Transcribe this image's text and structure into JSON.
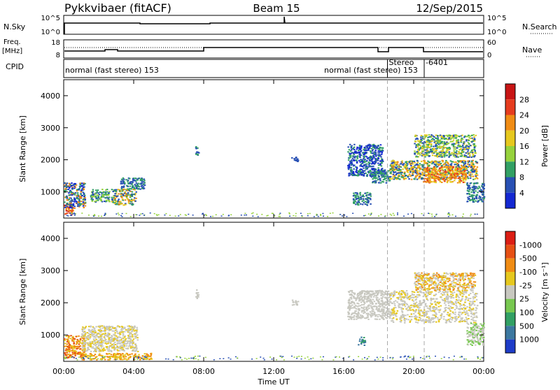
{
  "header": {
    "title": "Pykkvibaer (fitACF)",
    "beam": "Beam 15",
    "date": "12/Sep/2015"
  },
  "top_panels": {
    "nsky_label": "N.Sky",
    "nsky_ticks": [
      "10^5",
      "10^0"
    ],
    "nsearch_label": "N.Search",
    "nsearch_ticks": [
      "10^5",
      "10^0"
    ],
    "freq_label_line1": "Freq.",
    "freq_label_line2": "[MHz]",
    "freq_ticks": [
      "18",
      "8"
    ],
    "nave_label": "Nave",
    "nave_ticks": [
      "60",
      "0"
    ],
    "cpid_label": "CPID",
    "cpid_entries": [
      {
        "text": "normal (fast stereo) 153",
        "start_hour": 0.0
      },
      {
        "text": "normal (fast stereo) 153",
        "start_hour": 14.8
      },
      {
        "text": "Stereo",
        "start_hour": 18.5
      },
      {
        "text": "-6401",
        "start_hour": 20.6
      }
    ]
  },
  "chart_data": [
    {
      "type": "heatmap",
      "name": "Power panel",
      "ylabel": "Slant Range [km]",
      "ylim": [
        180,
        4500
      ],
      "xlim_hours": [
        0,
        24
      ],
      "yticks": [
        1000,
        2000,
        3000,
        4000
      ],
      "colorbar": {
        "label": "Power [dB]",
        "ticks": [
          "4",
          "8",
          "12",
          "16",
          "20",
          "24",
          "28"
        ],
        "colors": [
          "#1428d2",
          "#2850b4",
          "#32a064",
          "#96d23c",
          "#e6c81e",
          "#f08c14",
          "#e63c1e",
          "#c81414"
        ]
      },
      "vertical_markers_hours": [
        18.5,
        20.6
      ],
      "scatter_regions": [
        {
          "t0": 0.0,
          "t1": 0.5,
          "r0": 300,
          "r1": 700,
          "colors": [
            "#e63c1e",
            "#c81414",
            "#f08c14"
          ]
        },
        {
          "t0": 0.0,
          "t1": 1.2,
          "r0": 500,
          "r1": 1300,
          "colors": [
            "#2850b4",
            "#32a064",
            "#1428d2",
            "#f08c14"
          ]
        },
        {
          "t0": 1.5,
          "t1": 2.6,
          "r0": 700,
          "r1": 1100,
          "colors": [
            "#32a064",
            "#96d23c",
            "#2850b4"
          ]
        },
        {
          "t0": 2.7,
          "t1": 4.1,
          "r0": 600,
          "r1": 1100,
          "colors": [
            "#32a064",
            "#e6c81e",
            "#f08c14",
            "#2850b4"
          ]
        },
        {
          "t0": 3.2,
          "t1": 4.6,
          "r0": 1100,
          "r1": 1450,
          "colors": [
            "#2850b4",
            "#32a064"
          ]
        },
        {
          "t0": 7.5,
          "t1": 7.7,
          "r0": 2150,
          "r1": 2450,
          "colors": [
            "#2850b4",
            "#32a064"
          ]
        },
        {
          "t0": 13.0,
          "t1": 13.4,
          "r0": 1950,
          "r1": 2100,
          "colors": [
            "#2850b4"
          ]
        },
        {
          "t0": 16.2,
          "t1": 18.2,
          "r0": 1500,
          "r1": 2500,
          "colors": [
            "#2850b4",
            "#32a064",
            "#1428d2"
          ]
        },
        {
          "t0": 17.5,
          "t1": 18.6,
          "r0": 1300,
          "r1": 1700,
          "colors": [
            "#2850b4",
            "#32a064"
          ]
        },
        {
          "t0": 18.6,
          "t1": 23.6,
          "r0": 1400,
          "r1": 2000,
          "colors": [
            "#2850b4",
            "#32a064",
            "#e6c81e",
            "#f08c14"
          ]
        },
        {
          "t0": 20.5,
          "t1": 23.0,
          "r0": 1300,
          "r1": 1800,
          "colors": [
            "#f08c14",
            "#e63c1e",
            "#e6c81e"
          ]
        },
        {
          "t0": 20.0,
          "t1": 23.5,
          "r0": 2100,
          "r1": 2800,
          "colors": [
            "#32a064",
            "#96d23c",
            "#2850b4",
            "#e6c81e"
          ]
        },
        {
          "t0": 23.0,
          "t1": 24.0,
          "r0": 700,
          "r1": 1300,
          "colors": [
            "#2850b4",
            "#32a064"
          ]
        },
        {
          "t0": 16.5,
          "t1": 17.5,
          "r0": 600,
          "r1": 1000,
          "colors": [
            "#2850b4",
            "#32a064"
          ]
        }
      ]
    },
    {
      "type": "heatmap",
      "name": "Velocity panel",
      "ylabel": "Slant Range [km]",
      "xlabel": "Time UT",
      "ylim": [
        180,
        4500
      ],
      "xlim_hours": [
        0,
        24
      ],
      "yticks": [
        1000,
        2000,
        3000,
        4000
      ],
      "xticks": [
        "00:00",
        "04:00",
        "08:00",
        "12:00",
        "16:00",
        "20:00",
        "00:00"
      ],
      "colorbar": {
        "label": "Velocity [m s⁻¹]",
        "ticks": [
          "1000",
          "500",
          "100",
          "25",
          "-25",
          "-100",
          "-500",
          "-1000"
        ],
        "colors": [
          "#1e3cc8",
          "#3c78a0",
          "#32a064",
          "#78c850",
          "#c8c8c0",
          "#e6c81e",
          "#f08c14",
          "#e65014",
          "#dc1e14"
        ]
      },
      "vertical_markers_hours": [
        18.5,
        20.6
      ],
      "scatter_regions": [
        {
          "t0": 0.0,
          "t1": 1.2,
          "r0": 300,
          "r1": 1000,
          "colors": [
            "#f08c14",
            "#e65014",
            "#e6c81e"
          ]
        },
        {
          "t0": 1.0,
          "t1": 4.2,
          "r0": 500,
          "r1": 1300,
          "colors": [
            "#c8c8c0",
            "#c8c8c0",
            "#e6c81e"
          ]
        },
        {
          "t0": 1.0,
          "t1": 5.0,
          "r0": 250,
          "r1": 450,
          "colors": [
            "#f08c14",
            "#e6c81e"
          ]
        },
        {
          "t0": 7.5,
          "t1": 7.7,
          "r0": 2150,
          "r1": 2450,
          "colors": [
            "#c8c8c0"
          ]
        },
        {
          "t0": 13.0,
          "t1": 13.4,
          "r0": 1950,
          "r1": 2100,
          "colors": [
            "#c8c8c0"
          ]
        },
        {
          "t0": 16.2,
          "t1": 18.6,
          "r0": 1500,
          "r1": 2400,
          "colors": [
            "#c8c8c0"
          ]
        },
        {
          "t0": 18.6,
          "t1": 23.6,
          "r0": 1400,
          "r1": 2400,
          "colors": [
            "#c8c8c0",
            "#c8c8c0",
            "#e6c81e"
          ]
        },
        {
          "t0": 20.0,
          "t1": 23.5,
          "r0": 2400,
          "r1": 2950,
          "colors": [
            "#c8c8c0",
            "#e6c81e",
            "#f08c14"
          ]
        },
        {
          "t0": 23.0,
          "t1": 24.0,
          "r0": 700,
          "r1": 1400,
          "colors": [
            "#c8c8c0",
            "#78c850"
          ]
        },
        {
          "t0": 16.8,
          "t1": 17.2,
          "r0": 700,
          "r1": 950,
          "colors": [
            "#32a064",
            "#3c78a0"
          ]
        }
      ]
    }
  ]
}
